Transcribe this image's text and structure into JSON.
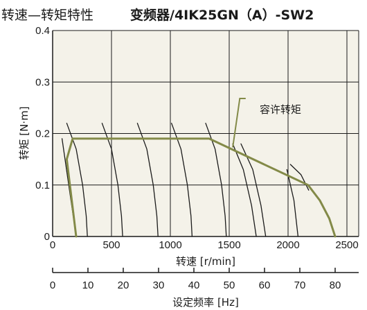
{
  "chart_data": {
    "type": "line",
    "title": {
      "main": "转速—转矩特性",
      "sub": "变频器/4IK25GN（A）-SW2"
    },
    "xlabel": "转速 [r/min]",
    "ylabel": "转矩 [N·m]",
    "xlim": [
      0,
      2600
    ],
    "ylim": [
      0,
      0.4
    ],
    "x_ticks": [
      0,
      500,
      1000,
      1500,
      2000,
      2500
    ],
    "y_ticks": [
      0,
      0.1,
      0.2,
      0.3,
      0.4
    ],
    "y_tick_labels": [
      "0",
      "0.1",
      "0.2",
      "0.3",
      "0.4"
    ],
    "grid": true,
    "plot_background": "#f4f2e9",
    "secondary_axis": {
      "label": "设定频率 [Hz]",
      "ticks": [
        0,
        10,
        20,
        30,
        40,
        50,
        60,
        70,
        80
      ],
      "rpm_per_hz": 30
    },
    "series": [
      {
        "name": "容许转矩",
        "color": "#838a48",
        "points": [
          [
            200,
            0
          ],
          [
            120,
            0.15
          ],
          [
            170,
            0.19
          ],
          [
            1330,
            0.19
          ],
          [
            2170,
            0.1
          ],
          [
            2270,
            0.07
          ],
          [
            2350,
            0.035
          ],
          [
            2400,
            0
          ]
        ]
      }
    ],
    "characteristic_curves": {
      "color": "#1a1a1a",
      "curves": [
        [
          [
            80,
            0.19
          ],
          [
            200,
            0
          ]
        ],
        [
          [
            120,
            0.22
          ],
          [
            200,
            0.17
          ],
          [
            255,
            0.1
          ],
          [
            285,
            0.04
          ],
          [
            295,
            0
          ]
        ],
        [
          [
            420,
            0.22
          ],
          [
            500,
            0.17
          ],
          [
            555,
            0.1
          ],
          [
            585,
            0.04
          ],
          [
            595,
            0
          ]
        ],
        [
          [
            720,
            0.22
          ],
          [
            800,
            0.17
          ],
          [
            855,
            0.1
          ],
          [
            885,
            0.04
          ],
          [
            895,
            0
          ]
        ],
        [
          [
            1010,
            0.22
          ],
          [
            1090,
            0.17
          ],
          [
            1145,
            0.1
          ],
          [
            1175,
            0.04
          ],
          [
            1185,
            0
          ]
        ],
        [
          [
            1300,
            0.22
          ],
          [
            1380,
            0.17
          ],
          [
            1435,
            0.1
          ],
          [
            1465,
            0.04
          ],
          [
            1475,
            0
          ]
        ],
        [
          [
            1530,
            0.18
          ],
          [
            1620,
            0.13
          ],
          [
            1690,
            0.06
          ],
          [
            1730,
            0
          ]
        ],
        [
          [
            1600,
            0.18
          ],
          [
            1700,
            0.13
          ],
          [
            1770,
            0.06
          ],
          [
            1810,
            0
          ]
        ],
        [
          [
            1990,
            0.13
          ],
          [
            2050,
            0.07
          ],
          [
            2085,
            0
          ]
        ],
        [
          [
            2020,
            0.14
          ],
          [
            2110,
            0.12
          ],
          [
            2175,
            0.09
          ]
        ]
      ]
    },
    "annotation": {
      "text": "容许转矩",
      "pointer": [
        [
          1640,
          0.268
        ],
        [
          1590,
          0.268
        ],
        [
          1530,
          0.173
        ]
      ]
    }
  }
}
